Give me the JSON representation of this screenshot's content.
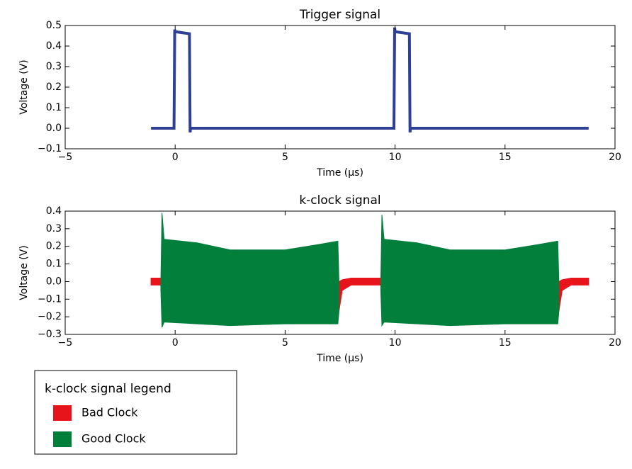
{
  "chart_data": [
    {
      "type": "line",
      "title": "Trigger signal",
      "x_label": "Time (μs)",
      "y_label": "Voltage (V)",
      "xlim": [
        -5,
        20
      ],
      "ylim": [
        -0.1,
        0.5
      ],
      "xticks": [
        {
          "value": -5,
          "label": "−5"
        },
        0,
        5,
        10,
        15,
        20
      ],
      "yticks": [
        {
          "value": -0.1,
          "label": "−0.1"
        },
        {
          "value": 0,
          "label": "0.0"
        },
        0.1,
        0.2,
        0.3,
        0.4,
        0.5
      ],
      "series": [
        {
          "color": "#2e3f96",
          "x": [
            -1.1,
            -0.05,
            -0.02,
            0.0,
            0.65,
            0.68,
            0.7,
            9.95,
            9.98,
            10.0,
            10.65,
            10.68,
            10.7,
            18.8
          ],
          "values": [
            0.0,
            0.0,
            0.48,
            0.47,
            0.46,
            -0.02,
            0.0,
            0.0,
            0.49,
            0.47,
            0.46,
            -0.02,
            0.0,
            0.0
          ]
        }
      ]
    },
    {
      "type": "band",
      "title": "k-clock signal",
      "x_label": "Time (μs)",
      "y_label": "Voltage (V)",
      "xlim": [
        -5,
        20
      ],
      "ylim": [
        -0.3,
        0.4
      ],
      "xticks": [
        {
          "value": -5,
          "label": "−5"
        },
        0,
        5,
        10,
        15,
        20
      ],
      "yticks": [
        {
          "value": -0.3,
          "label": "−0.3"
        },
        {
          "value": -0.2,
          "label": "−0.2"
        },
        {
          "value": -0.1,
          "label": "−0.1"
        },
        {
          "value": 0,
          "label": "0.0"
        },
        0.1,
        0.2,
        0.3,
        0.4
      ],
      "legend_title": "k-clock signal legend",
      "series": [
        {
          "name": "Bad Clock",
          "color": "#e8141c",
          "x": [
            -1.1,
            -0.65,
            null,
            7.45,
            7.6,
            8,
            9.35,
            null,
            17.45,
            17.6,
            18,
            18.8
          ],
          "upper": [
            0.02,
            0.02,
            null,
            0.0,
            0.01,
            0.02,
            0.02,
            null,
            0.0,
            0.01,
            0.02,
            0.02
          ],
          "lower": [
            -0.02,
            -0.02,
            null,
            -0.17,
            -0.05,
            -0.02,
            -0.02,
            null,
            -0.17,
            -0.05,
            -0.02,
            -0.02
          ]
        },
        {
          "name": "Good Clock",
          "color": "#037f3c",
          "x": [
            -0.65,
            -0.6,
            -0.5,
            1,
            2.5,
            5,
            6.5,
            7.4,
            7.45,
            null,
            9.35,
            9.4,
            9.5,
            11,
            12.5,
            15,
            16.5,
            17.4,
            17.45
          ],
          "upper": [
            0.0,
            0.39,
            0.24,
            0.22,
            0.18,
            0.18,
            0.21,
            0.23,
            0.0,
            null,
            0.0,
            0.38,
            0.24,
            0.22,
            0.18,
            0.18,
            0.21,
            0.23,
            0.0
          ],
          "lower": [
            -0.05,
            -0.26,
            -0.23,
            -0.24,
            -0.25,
            -0.24,
            -0.24,
            -0.24,
            -0.17,
            null,
            -0.05,
            -0.25,
            -0.23,
            -0.24,
            -0.25,
            -0.24,
            -0.24,
            -0.24,
            -0.17
          ]
        }
      ]
    }
  ]
}
